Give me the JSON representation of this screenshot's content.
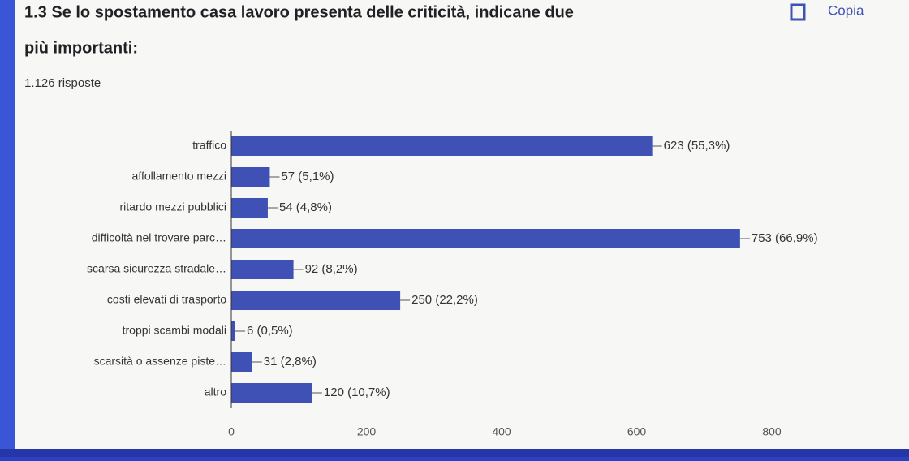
{
  "chart_data": {
    "type": "bar",
    "orientation": "horizontal",
    "title": "1.3 Se lo spostamento casa lavoro presenta delle criticità, indicane due",
    "title_line2": "più importanti:",
    "subtitle": "1.126 risposte",
    "button": "Copia",
    "categories": [
      "traffico",
      "affollamento mezzi",
      "ritardo mezzi pubblici",
      "difficoltà nel trovare parc…",
      "scarsa sicurezza stradale…",
      "costi elevati di trasporto",
      "troppi scambi modali",
      "scarsità o assenze piste…",
      "altro"
    ],
    "values": [
      623,
      57,
      54,
      753,
      92,
      250,
      6,
      31,
      120
    ],
    "value_labels": [
      "623 (55,3%)",
      "57 (5,1%)",
      "54 (4,8%)",
      "753 (66,9%)",
      "92 (8,2%)",
      "250 (22,2%)",
      "6 (0,5%)",
      "31 (2,8%)",
      "120 (10,7%)"
    ],
    "color": "#3f51b5",
    "xlim": [
      0,
      800
    ],
    "xticks": [
      0,
      200,
      400,
      600,
      800
    ],
    "grid": false
  }
}
